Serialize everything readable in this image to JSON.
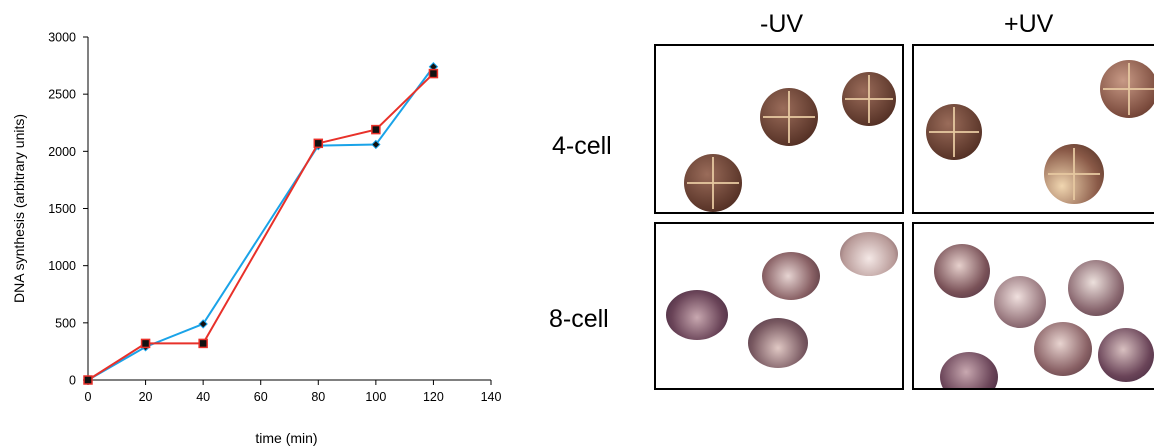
{
  "chart_data": {
    "type": "line",
    "xlabel": "time (min)",
    "ylabel": "DNA synthesis (arbitrary units)",
    "xlim": [
      0,
      140
    ],
    "ylim": [
      0,
      3000
    ],
    "xticks": [
      "0",
      "20",
      "40",
      "60",
      "80",
      "100",
      "120",
      "140"
    ],
    "yticks": [
      "0",
      "500",
      "1000",
      "1500",
      "2000",
      "2500",
      "3000"
    ],
    "grid": false,
    "series": [
      {
        "color": "#1aa3e8",
        "marker": "diamond",
        "x": [
          0,
          20,
          40,
          80,
          100,
          120
        ],
        "y": [
          0,
          290,
          490,
          2050,
          2060,
          2740
        ]
      },
      {
        "color": "#e8312a",
        "marker": "square",
        "x": [
          0,
          20,
          40,
          80,
          100,
          120
        ],
        "y": [
          0,
          320,
          320,
          2070,
          2190,
          2680
        ]
      }
    ]
  },
  "photos": {
    "col_labels": [
      "-UV",
      "+UV"
    ],
    "row_labels": [
      "4-cell",
      "8-cell"
    ]
  }
}
